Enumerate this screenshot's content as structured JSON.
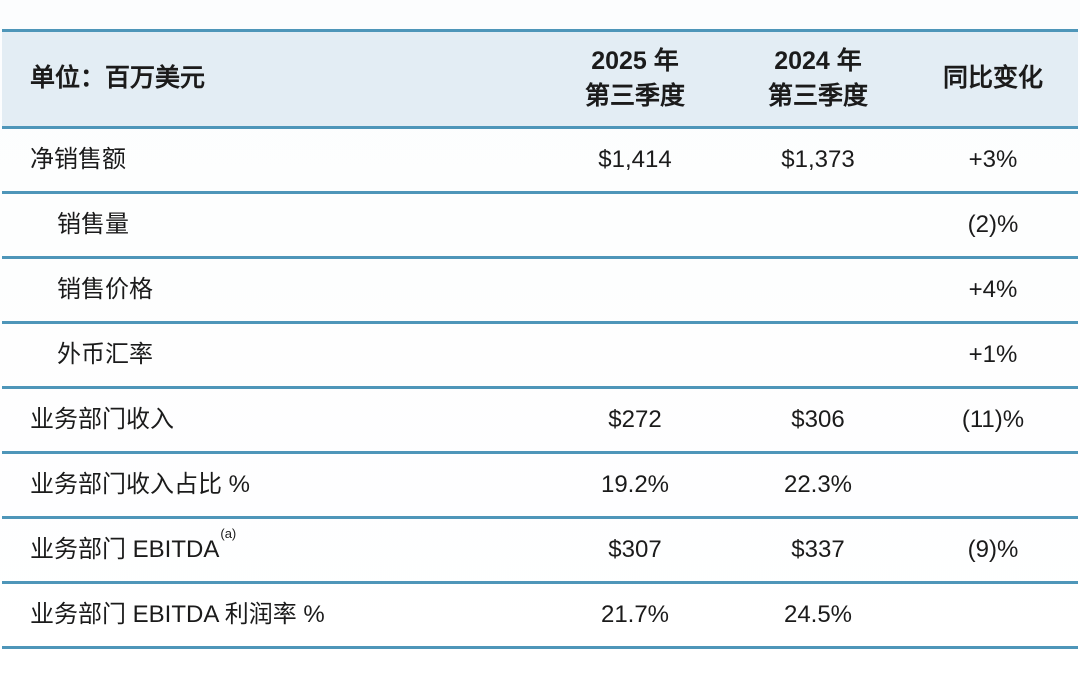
{
  "table": {
    "header": {
      "unit_label": "单位：百万美元",
      "col_2025": {
        "line1": "2025 年",
        "line2": "第三季度"
      },
      "col_2024": {
        "line1": "2024 年",
        "line2": "第三季度"
      },
      "col_change": "同比变化"
    },
    "rows": [
      {
        "label": "净销售额",
        "val_2025": "$1,414",
        "val_2024": "$1,373",
        "yoy": "+3%"
      },
      {
        "label": "销售量",
        "indent": true,
        "val_2025": "",
        "val_2024": "",
        "yoy": "(2)%"
      },
      {
        "label": "销售价格",
        "indent": true,
        "val_2025": "",
        "val_2024": "",
        "yoy": "+4%"
      },
      {
        "label": "外币汇率",
        "indent": true,
        "val_2025": "",
        "val_2024": "",
        "yoy": "+1%"
      },
      {
        "label": "业务部门收入",
        "val_2025": "$272",
        "val_2024": "$306",
        "yoy": "(11)%"
      },
      {
        "label": "业务部门收入占比 %",
        "val_2025": "19.2%",
        "val_2024": "22.3%",
        "yoy": ""
      },
      {
        "label": "业务部门 EBITDA",
        "footnote": "(a)",
        "val_2025": "$307",
        "val_2024": "$337",
        "yoy": "(9)%"
      },
      {
        "label": "业务部门 EBITDA 利润率 %",
        "val_2025": "21.7%",
        "val_2024": "24.5%",
        "yoy": ""
      }
    ],
    "colors": {
      "header_bg": "#e3edf4",
      "divider": "#4e96b9",
      "text": "#1b1b1b",
      "page_bg": "#ffffff"
    }
  }
}
